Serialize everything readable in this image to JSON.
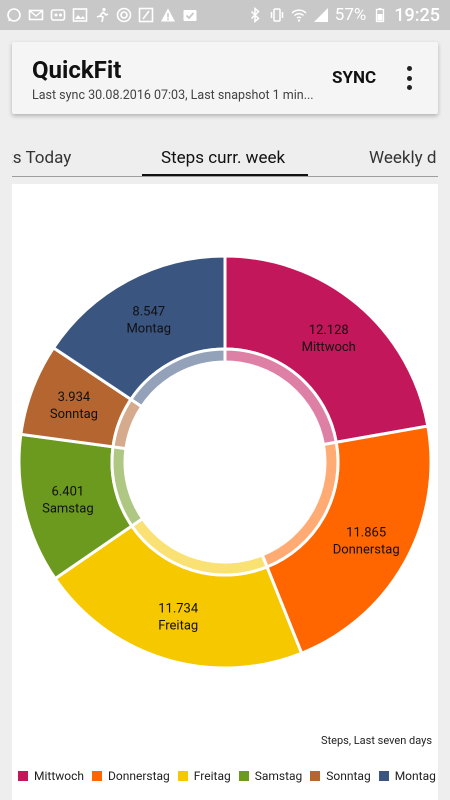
{
  "status_bar": {
    "battery": "57%",
    "time": "19:25",
    "icons_left": [
      "whatsapp-icon",
      "mail-icon",
      "voicemail-icon",
      "image-icon",
      "runner-icon",
      "target-icon",
      "notification-icon",
      "warning-icon",
      "check-icon"
    ],
    "icons_right": [
      "bluetooth-icon",
      "vibrate-icon",
      "wifi-icon",
      "signal-icon",
      "battery-icon"
    ]
  },
  "app_bar": {
    "title": "QuickFit",
    "subtitle": "Last sync 30.08.2016 07:03, Last snapshot 1 min...",
    "sync_label": "SYNC"
  },
  "tabs": [
    {
      "label": "ats Today"
    },
    {
      "label": "Steps curr. week"
    },
    {
      "label": "Weekly d"
    }
  ],
  "chart_data": {
    "type": "pie",
    "donut": true,
    "description": "Steps, Last seven days",
    "slices": [
      {
        "name": "Mittwoch",
        "value": 12128,
        "label": "12.128",
        "color": "#c2185b"
      },
      {
        "name": "Donnerstag",
        "value": 11865,
        "label": "11.865",
        "color": "#ff6600"
      },
      {
        "name": "Freitag",
        "value": 11734,
        "label": "11.734",
        "color": "#f5c800"
      },
      {
        "name": "Samstag",
        "value": 6401,
        "label": "6.401",
        "color": "#6b9a1f"
      },
      {
        "name": "Sonntag",
        "value": 3934,
        "label": "3.934",
        "color": "#b5652f"
      },
      {
        "name": "Montag",
        "value": 8547,
        "label": "8.547",
        "color": "#3a5580"
      }
    ],
    "legend": {
      "position": "bottom-left",
      "labels": [
        "Mittwoch",
        "Donnerstag",
        "Freitag",
        "Samstag",
        "Sonntag",
        "Montag"
      ]
    }
  }
}
